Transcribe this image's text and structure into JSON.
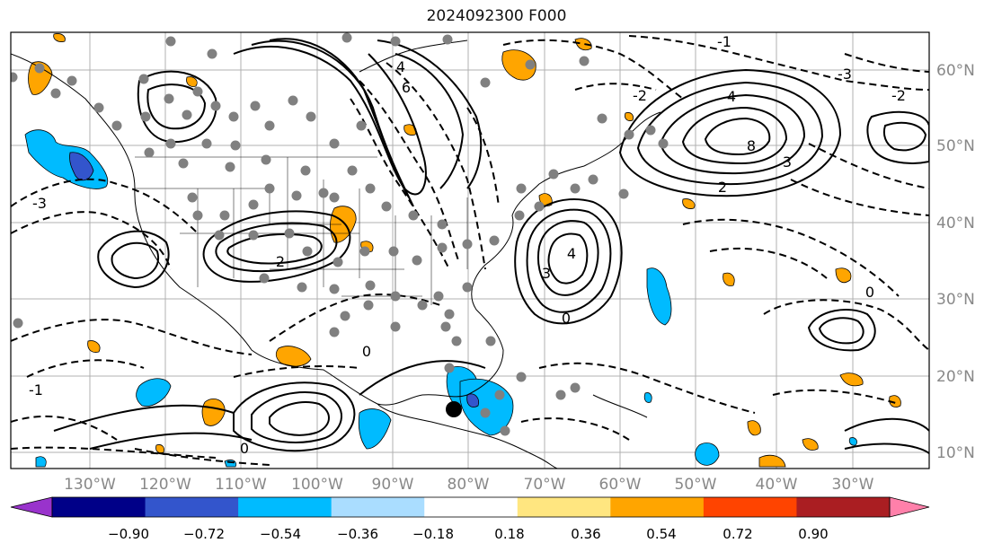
{
  "title": "2024092300 F000",
  "map": {
    "lon_labels": [
      "130°W",
      "120°W",
      "110°W",
      "100°W",
      "90°W",
      "80°W",
      "70°W",
      "60°W",
      "50°W",
      "40°W",
      "30°W"
    ],
    "lat_labels": [
      "60°N",
      "50°N",
      "40°N",
      "30°N",
      "20°N",
      "10°N"
    ],
    "tick_color": "#888888",
    "contour_labels": [
      "-1",
      "0",
      "-3",
      "-2",
      "2",
      "3",
      "4",
      "6",
      "8"
    ],
    "marker": "black-circle",
    "station_color": "#808080"
  },
  "colorbar": {
    "labels": [
      "−0.90",
      "−0.72",
      "−0.54",
      "−0.36",
      "−0.18",
      "0.18",
      "0.36",
      "0.54",
      "0.72",
      "0.90"
    ],
    "colors": [
      "#9933cc",
      "#000088",
      "#3355cc",
      "#00bbff",
      "#aaddff",
      "#ffffff",
      "#ffe680",
      "#ffa500",
      "#ff4400",
      "#aa1e22",
      "#ff80aa"
    ]
  }
}
